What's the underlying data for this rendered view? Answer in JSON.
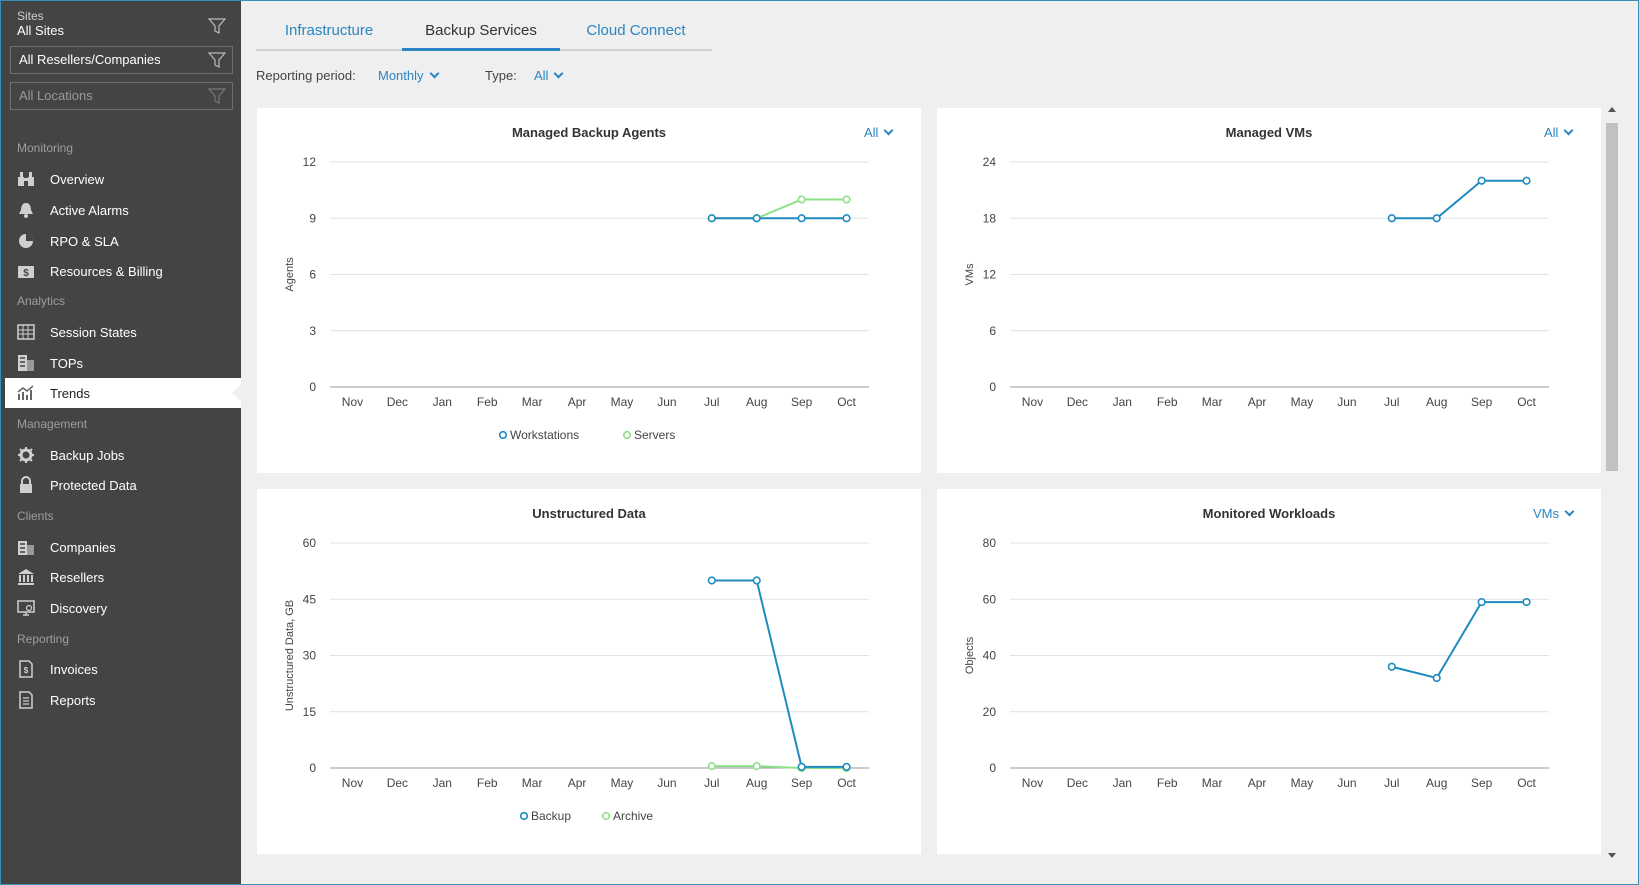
{
  "sidebar": {
    "sites_label": "Sites",
    "sites_value": "All Sites",
    "reseller_filter": "All Resellers/Companies",
    "location_filter": "All Locations",
    "sections": {
      "monitoring": "Monitoring",
      "analytics": "Analytics",
      "management": "Management",
      "clients": "Clients",
      "reporting": "Reporting"
    },
    "items": [
      {
        "label": "Overview",
        "icon": "binoculars-icon"
      },
      {
        "label": "Active Alarms",
        "icon": "bell-icon"
      },
      {
        "label": "RPO & SLA",
        "icon": "pie-icon"
      },
      {
        "label": "Resources & Billing",
        "icon": "money-icon"
      },
      {
        "label": "Session States",
        "icon": "grid-icon"
      },
      {
        "label": "TOPs",
        "icon": "tops-icon"
      },
      {
        "label": "Trends",
        "icon": "trends-icon"
      },
      {
        "label": "Backup Jobs",
        "icon": "gear-icon"
      },
      {
        "label": "Protected Data",
        "icon": "lock-icon"
      },
      {
        "label": "Companies",
        "icon": "building-icon"
      },
      {
        "label": "Resellers",
        "icon": "bank-icon"
      },
      {
        "label": "Discovery",
        "icon": "monitor-icon"
      },
      {
        "label": "Invoices",
        "icon": "invoice-icon"
      },
      {
        "label": "Reports",
        "icon": "report-icon"
      }
    ],
    "active_item": "Trends"
  },
  "tabs": [
    "Infrastructure",
    "Backup Services",
    "Cloud Connect"
  ],
  "active_tab": "Backup Services",
  "filters": {
    "period_label": "Reporting period:",
    "period_value": "Monthly",
    "type_label": "Type:",
    "type_value": "All"
  },
  "colors": {
    "accent": "#2a85c2",
    "series_blue": "#1f8bbf",
    "series_green": "#8fe08a",
    "sidebar_bg": "#444444"
  },
  "chart_data": [
    {
      "type": "line",
      "title": "Managed Backup Agents",
      "dropdown": "All",
      "ylabel": "Agents",
      "ylim": [
        0,
        12
      ],
      "yticks": [
        0,
        3,
        6,
        9,
        12
      ],
      "categories": [
        "Nov",
        "Dec",
        "Jan",
        "Feb",
        "Mar",
        "Apr",
        "May",
        "Jun",
        "Jul",
        "Aug",
        "Sep",
        "Oct"
      ],
      "series": [
        {
          "name": "Workstations",
          "color": "#1f8bbf",
          "values": [
            null,
            null,
            null,
            null,
            null,
            null,
            null,
            null,
            9,
            9,
            9,
            9
          ]
        },
        {
          "name": "Servers",
          "color": "#8fe08a",
          "values": [
            null,
            null,
            null,
            null,
            null,
            null,
            null,
            null,
            9,
            9,
            10,
            10
          ]
        }
      ],
      "legend": "bottom-center",
      "grid": true
    },
    {
      "type": "line",
      "title": "Managed VMs",
      "dropdown": "All",
      "ylabel": "VMs",
      "ylim": [
        0,
        24
      ],
      "yticks": [
        0,
        6,
        12,
        18,
        24
      ],
      "categories": [
        "Nov",
        "Dec",
        "Jan",
        "Feb",
        "Mar",
        "Apr",
        "May",
        "Jun",
        "Jul",
        "Aug",
        "Sep",
        "Oct"
      ],
      "series": [
        {
          "color": "#1f8bbf",
          "values": [
            null,
            null,
            null,
            null,
            null,
            null,
            null,
            null,
            18,
            18,
            22,
            22
          ]
        }
      ],
      "legend": "none",
      "grid": true
    },
    {
      "type": "line",
      "title": "Unstructured Data",
      "dropdown": "",
      "ylabel": "Unstructured Data, GB",
      "ylim": [
        0,
        60
      ],
      "yticks": [
        0,
        15,
        30,
        45,
        60
      ],
      "categories": [
        "Nov",
        "Dec",
        "Jan",
        "Feb",
        "Mar",
        "Apr",
        "May",
        "Jun",
        "Jul",
        "Aug",
        "Sep",
        "Oct"
      ],
      "series": [
        {
          "name": "Backup",
          "color": "#1f8bbf",
          "values": [
            null,
            null,
            null,
            null,
            null,
            null,
            null,
            null,
            50,
            50,
            0.3,
            0.3
          ]
        },
        {
          "name": "Archive",
          "color": "#8fe08a",
          "values": [
            null,
            null,
            null,
            null,
            null,
            null,
            null,
            null,
            0.5,
            0.5,
            0,
            0
          ]
        }
      ],
      "legend": "bottom-center",
      "grid": true
    },
    {
      "type": "line",
      "title": "Monitored Workloads",
      "dropdown": "VMs",
      "ylabel": "Objects",
      "ylim": [
        0,
        80
      ],
      "yticks": [
        0,
        20,
        40,
        60,
        80
      ],
      "categories": [
        "Nov",
        "Dec",
        "Jan",
        "Feb",
        "Mar",
        "Apr",
        "May",
        "Jun",
        "Jul",
        "Aug",
        "Sep",
        "Oct"
      ],
      "series": [
        {
          "color": "#1f8bbf",
          "values": [
            null,
            null,
            null,
            null,
            null,
            null,
            null,
            null,
            36,
            32,
            59,
            59
          ]
        }
      ],
      "legend": "none",
      "grid": true
    }
  ]
}
